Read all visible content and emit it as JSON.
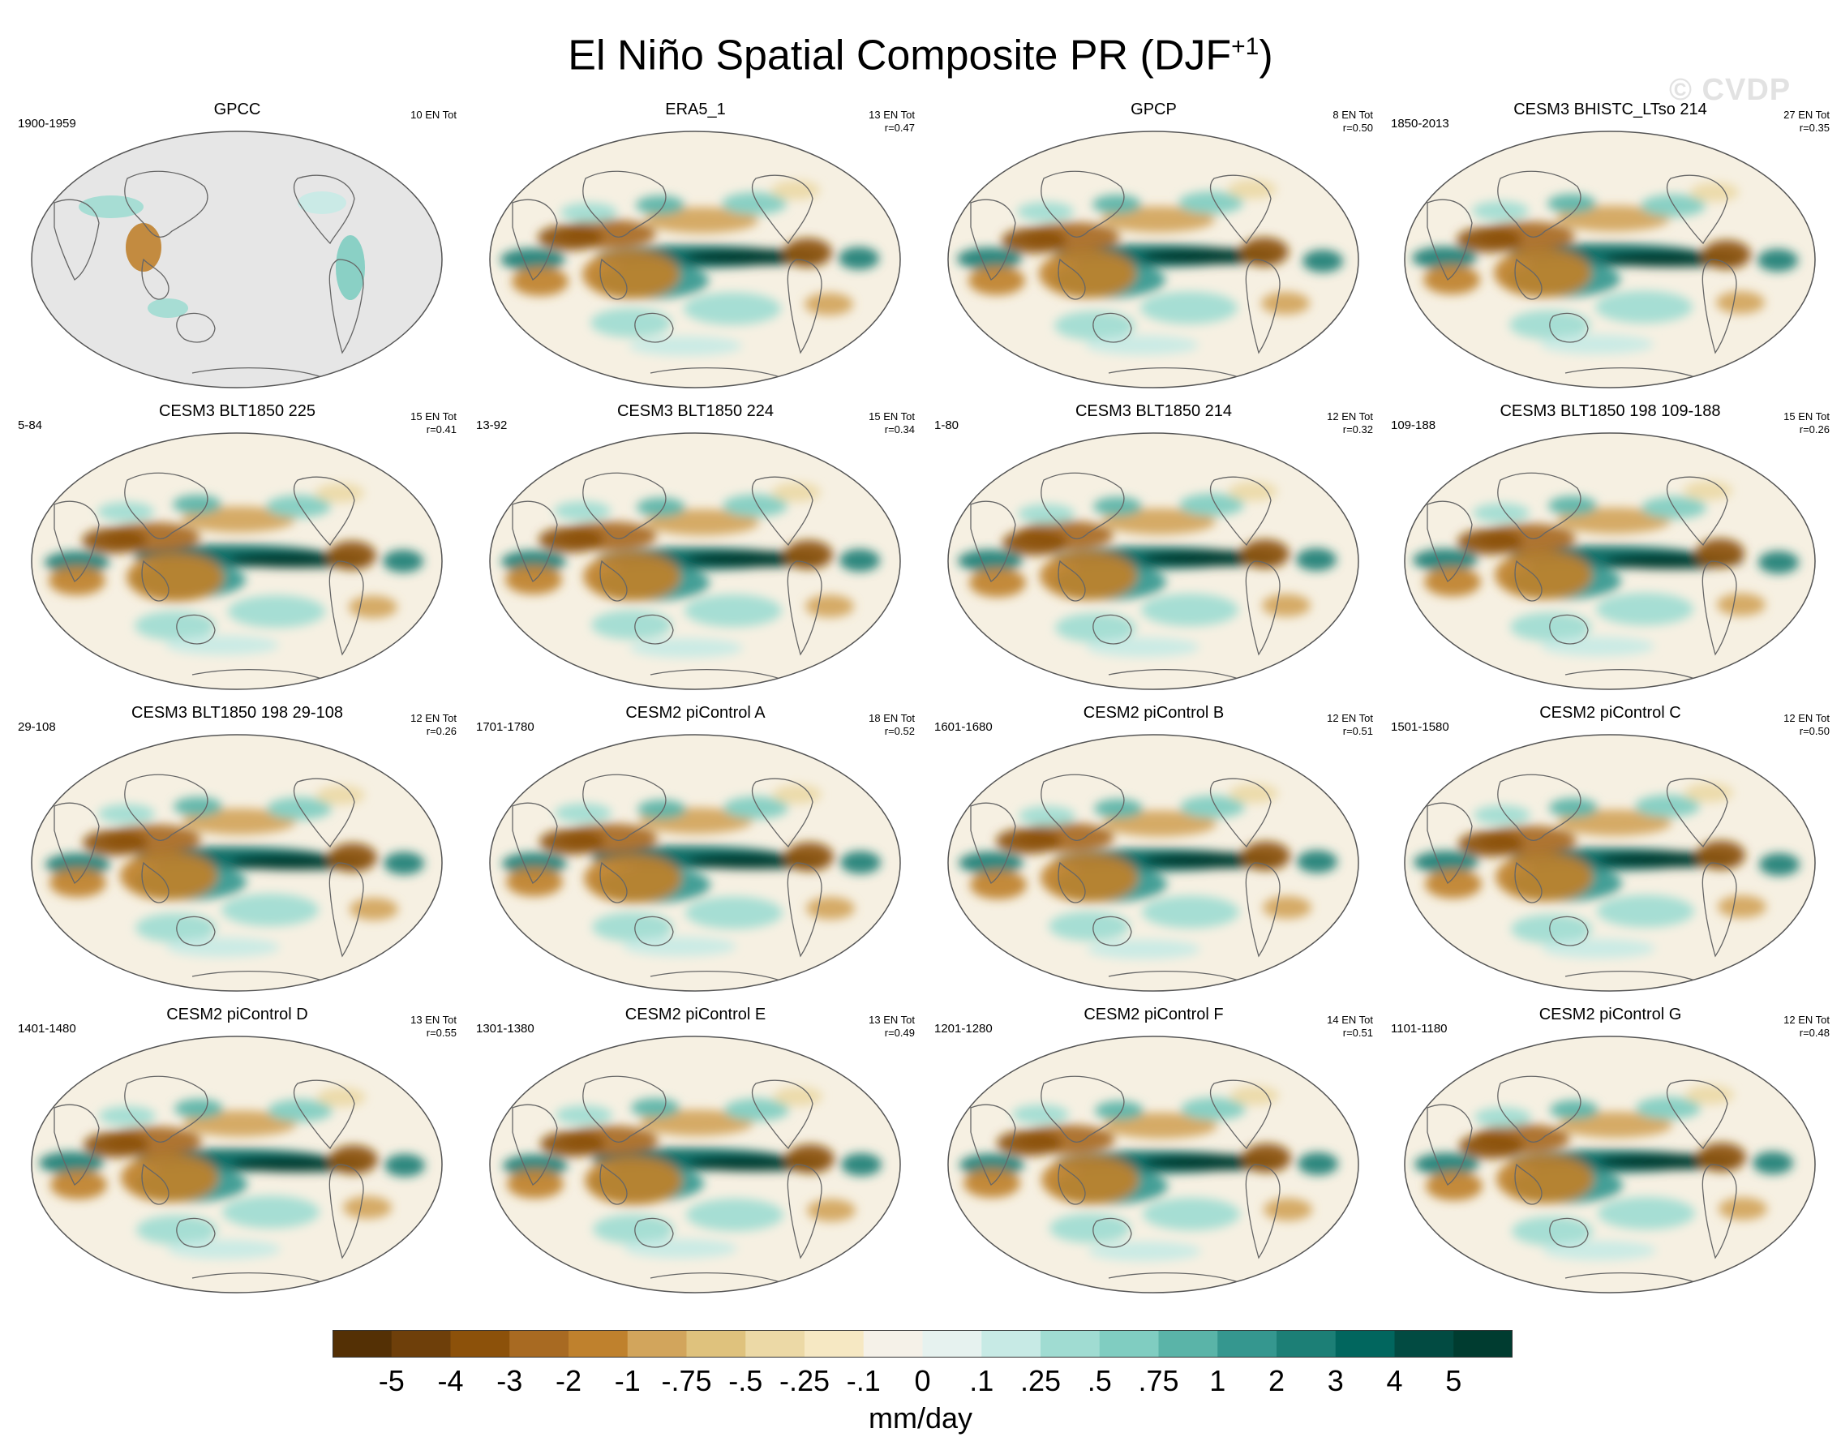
{
  "title": "El Niño Spatial Composite PR (DJF",
  "title_sup": "+1",
  "title_close": ")",
  "watermark": "© CVDP",
  "chart_data": {
    "type": "heatmap",
    "variable": "PR",
    "season": "DJF+1",
    "panels": [
      {
        "name": "GPCC",
        "period": "1900-1959",
        "events": "10 EN Tot",
        "r": ""
      },
      {
        "name": "ERA5_1",
        "period": "",
        "events": "13 EN Tot",
        "r": "r=0.47"
      },
      {
        "name": "GPCP",
        "period": "",
        "events": "8 EN Tot",
        "r": "r=0.50"
      },
      {
        "name": "CESM3 BHISTC_LTso 214",
        "period": "1850-2013",
        "events": "27 EN Tot",
        "r": "r=0.35"
      },
      {
        "name": "CESM3 BLT1850 225",
        "period": "5-84",
        "events": "15 EN Tot",
        "r": "r=0.41"
      },
      {
        "name": "CESM3 BLT1850 224",
        "period": "13-92",
        "events": "15 EN Tot",
        "r": "r=0.34"
      },
      {
        "name": "CESM3 BLT1850 214",
        "period": "1-80",
        "events": "12 EN Tot",
        "r": "r=0.32"
      },
      {
        "name": "CESM3 BLT1850 198 109-188",
        "period": "109-188",
        "events": "15 EN Tot",
        "r": "r=0.26"
      },
      {
        "name": "CESM3 BLT1850 198 29-108",
        "period": "29-108",
        "events": "12 EN Tot",
        "r": "r=0.26"
      },
      {
        "name": "CESM2 piControl A",
        "period": "1701-1780",
        "events": "18 EN Tot",
        "r": "r=0.52"
      },
      {
        "name": "CESM2 piControl B",
        "period": "1601-1680",
        "events": "12 EN Tot",
        "r": "r=0.51"
      },
      {
        "name": "CESM2 piControl C",
        "period": "1501-1580",
        "events": "12 EN Tot",
        "r": "r=0.50"
      },
      {
        "name": "CESM2 piControl D",
        "period": "1401-1480",
        "events": "13 EN Tot",
        "r": "r=0.55"
      },
      {
        "name": "CESM2 piControl E",
        "period": "1301-1380",
        "events": "13 EN Tot",
        "r": "r=0.49"
      },
      {
        "name": "CESM2 piControl F",
        "period": "1201-1280",
        "events": "14 EN Tot",
        "r": "r=0.51"
      },
      {
        "name": "CESM2 piControl G",
        "period": "1101-1180",
        "events": "12 EN Tot",
        "r": "r=0.48"
      }
    ],
    "colorbar": {
      "labels": [
        "-5",
        "-4",
        "-3",
        "-2",
        "-1",
        "-.75",
        "-.5",
        "-.25",
        "-.1",
        "0",
        ".1",
        ".25",
        ".5",
        ".75",
        "1",
        "2",
        "3",
        "4",
        "5"
      ],
      "colors": [
        "#543005",
        "#6e3f0a",
        "#8c510a",
        "#a86a22",
        "#bf812d",
        "#d2a55c",
        "#dfc27d",
        "#ecd9a6",
        "#f6e8c3",
        "#f5f1e8",
        "#e6f2ef",
        "#c7eae5",
        "#a0dcd2",
        "#80cdc1",
        "#5ab4a8",
        "#35978f",
        "#1c7f76",
        "#01665e",
        "#024b42",
        "#003c30"
      ],
      "units": "mm/day"
    }
  }
}
